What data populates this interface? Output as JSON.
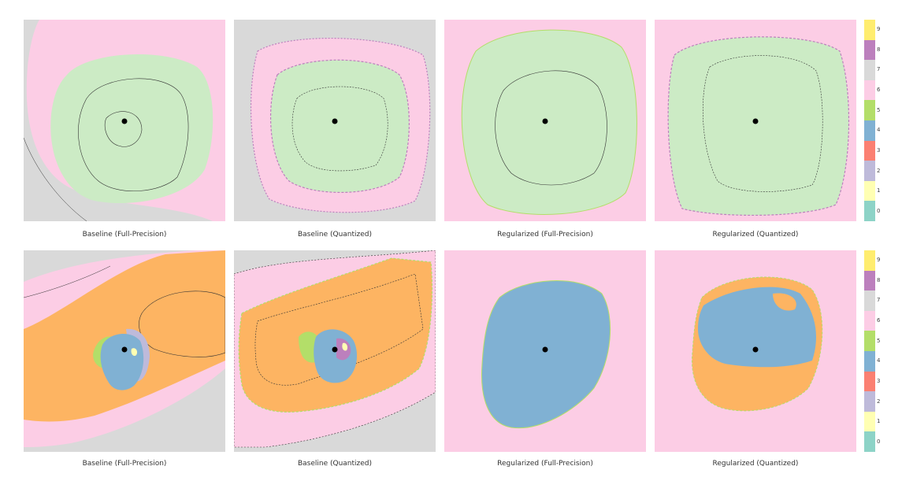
{
  "chart_data": {
    "type": "heatmap",
    "palette": [
      "#8dd3c7",
      "#ffffb3",
      "#bebada",
      "#fb8072",
      "#80b1d3",
      "#fdb462",
      "#b3de69",
      "#fccde5",
      "#d9d9d9",
      "#bc80bd"
    ],
    "class_labels": [
      "0",
      "1",
      "2",
      "3",
      "4",
      "5",
      "6",
      "7",
      "8",
      "9"
    ],
    "colorbar": {
      "ticks": [
        "0",
        "1",
        "2",
        "3",
        "4",
        "5",
        "6",
        "7",
        "8",
        "9"
      ],
      "placement": "right"
    },
    "rows": [
      {
        "panels": [
          {
            "caption": "Baseline (Full-Precision)",
            "background_class": 8,
            "regions": [
              {
                "class": 7,
                "extent": 0.72
              },
              {
                "class": 6,
                "extent": 0.46
              }
            ],
            "noise": false
          },
          {
            "caption": "Baseline (Quantized)",
            "background_class": 8,
            "regions": [
              {
                "class": 7,
                "extent": 0.46
              },
              {
                "class": 6,
                "extent": 0.32
              }
            ],
            "noise": true
          },
          {
            "caption": "Regularized (Full-Precision)",
            "background_class": 7,
            "regions": [
              {
                "class": 6,
                "extent": 0.5
              }
            ],
            "noise": false
          },
          {
            "caption": "Regularized (Quantized)",
            "background_class": 7,
            "regions": [
              {
                "class": 6,
                "extent": 0.42
              }
            ],
            "noise": true
          }
        ]
      },
      {
        "panels": [
          {
            "caption": "Baseline (Full-Precision)",
            "background_class": 8,
            "regions": [
              {
                "class": 7,
                "extent": 0.75
              },
              {
                "class": 5,
                "extent": 0.55
              },
              {
                "class": 4,
                "extent": 0.12
              }
            ],
            "noise": false
          },
          {
            "caption": "Baseline (Quantized)",
            "background_class": 8,
            "regions": [
              {
                "class": 7,
                "extent": 0.7
              },
              {
                "class": 5,
                "extent": 0.5
              },
              {
                "class": 4,
                "extent": 0.12
              }
            ],
            "noise": true
          },
          {
            "caption": "Regularized (Full-Precision)",
            "background_class": 7,
            "regions": [
              {
                "class": 4,
                "extent": 0.32
              }
            ],
            "noise": false
          },
          {
            "caption": "Regularized (Quantized)",
            "background_class": 7,
            "regions": [
              {
                "class": 4,
                "extent": 0.34
              },
              {
                "class": 5,
                "extent": 0.22
              }
            ],
            "noise": true
          }
        ]
      }
    ]
  }
}
